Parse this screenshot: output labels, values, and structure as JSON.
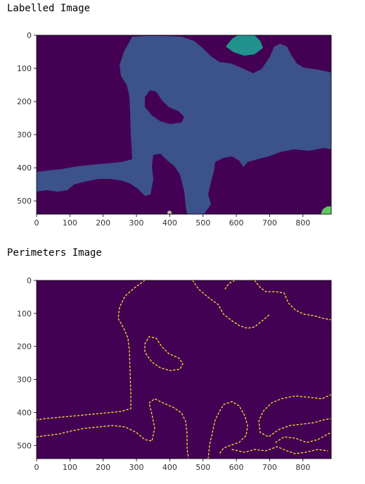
{
  "captions": {
    "labelled": "Labelled Image",
    "perimeters": "Perimeters Image"
  },
  "colors": {
    "background_label": "#440154",
    "main_region": "#3b528b",
    "teal_region": "#21918c",
    "green_region": "#5ec962",
    "perimeter_line": "#fde725"
  },
  "chart_data": [
    {
      "type": "heatmap",
      "title": "",
      "xlim": [
        0,
        885
      ],
      "ylim": [
        540,
        0
      ],
      "x_ticks": [
        0,
        100,
        200,
        300,
        400,
        500,
        600,
        700,
        800
      ],
      "y_ticks": [
        0,
        100,
        200,
        300,
        400,
        500
      ],
      "colormap": "viridis",
      "grid": false
    },
    {
      "type": "heatmap",
      "title": "",
      "xlim": [
        0,
        885
      ],
      "ylim": [
        540,
        0
      ],
      "x_ticks": [
        0,
        100,
        200,
        300,
        400,
        500,
        600,
        700,
        800
      ],
      "y_ticks": [
        0,
        100,
        200,
        300,
        400,
        500
      ],
      "colormap": "viridis",
      "grid": false
    }
  ]
}
